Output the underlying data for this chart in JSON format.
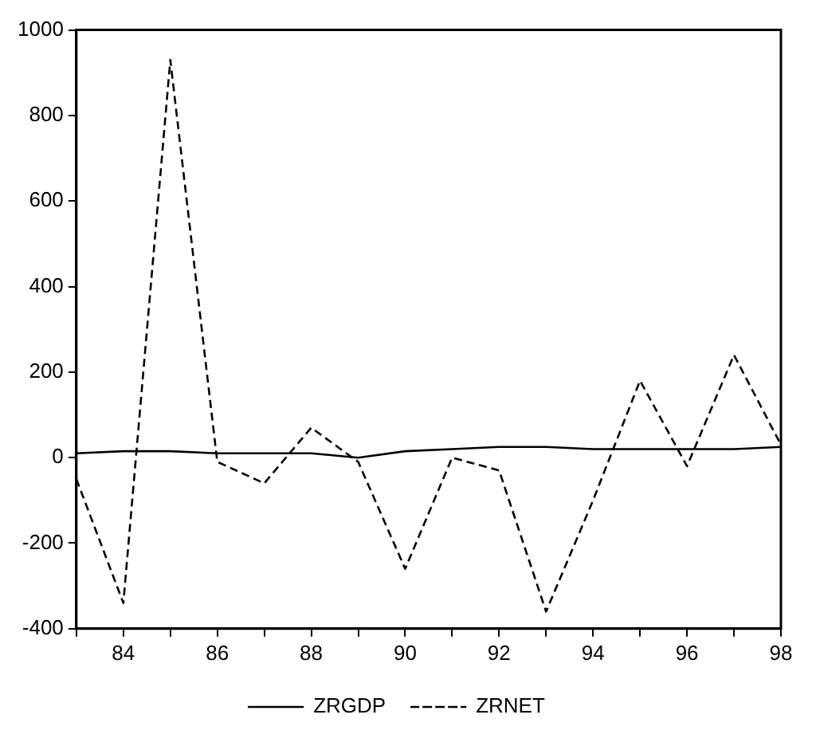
{
  "chart_data": {
    "type": "line",
    "x": [
      83,
      84,
      85,
      86,
      87,
      88,
      89,
      90,
      91,
      92,
      93,
      94,
      95,
      96,
      97,
      98
    ],
    "series": [
      {
        "name": "ZRGDP",
        "color": "#000000",
        "line_style": "solid",
        "values": [
          10,
          15,
          15,
          10,
          10,
          10,
          0,
          15,
          20,
          25,
          25,
          20,
          20,
          20,
          20,
          25
        ]
      },
      {
        "name": "ZRNET",
        "color": "#000000",
        "line_style": "dashed",
        "values": [
          -50,
          -340,
          930,
          -10,
          -60,
          70,
          -10,
          -260,
          0,
          -30,
          -360,
          -100,
          180,
          -20,
          240,
          30
        ]
      }
    ],
    "xlim": [
      83,
      98
    ],
    "xticks": [
      {
        "value": 83,
        "label": null
      },
      84,
      {
        "value": 85,
        "label": null
      },
      86,
      {
        "value": 87,
        "label": null
      },
      88,
      {
        "value": 89,
        "label": null
      },
      90,
      {
        "value": 91,
        "label": null
      },
      92,
      {
        "value": 93,
        "label": null
      },
      94,
      {
        "value": 95,
        "label": null
      },
      96,
      {
        "value": 97,
        "label": null
      },
      98
    ],
    "ylim": [
      -400,
      1000
    ],
    "yticks": [
      -400,
      -200,
      0,
      200,
      400,
      600,
      800,
      1000
    ],
    "grid": false,
    "legend": "bottom",
    "marker": "none"
  }
}
